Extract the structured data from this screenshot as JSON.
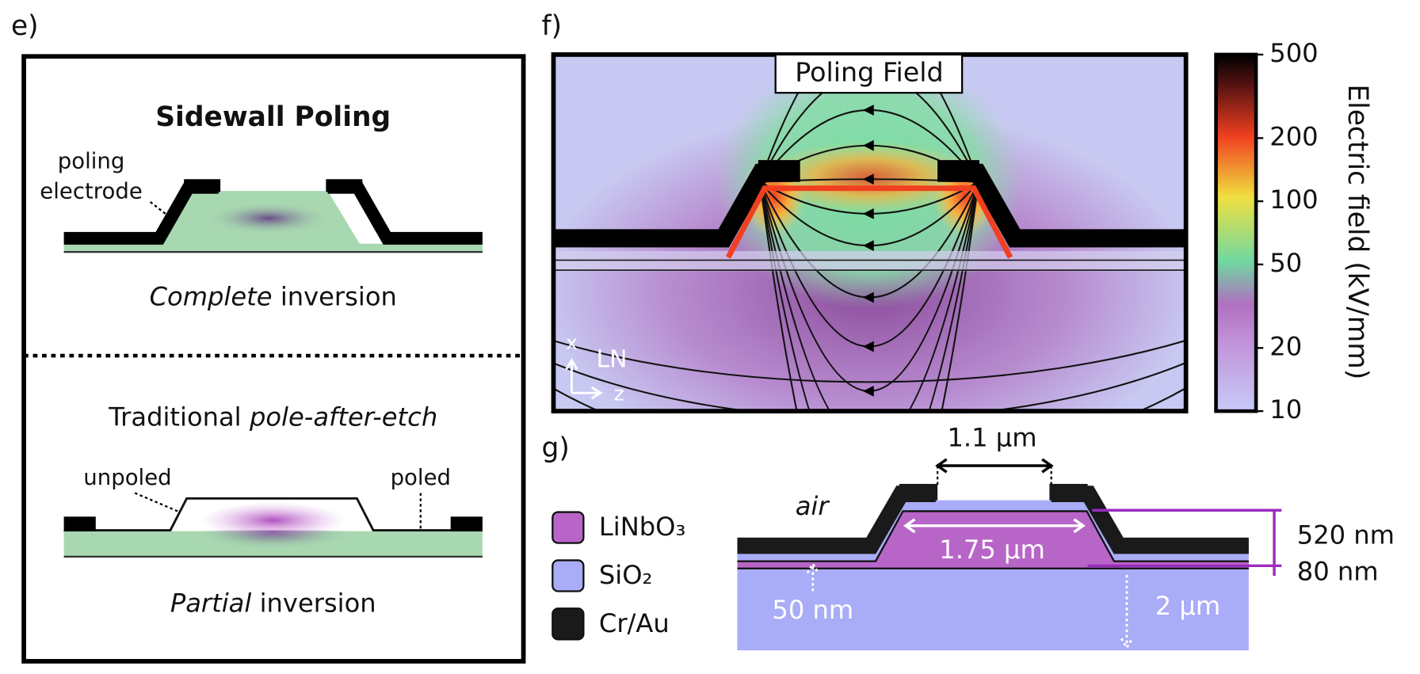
{
  "panel_e": {
    "label": "e)",
    "title": "Sidewall Poling",
    "electrode_label": [
      "poling",
      "electrode"
    ],
    "top_caption": [
      "Complete",
      "inversion"
    ],
    "bottom_title": [
      "Traditional",
      "pole-after-etch"
    ],
    "unpoled": "unpoled",
    "poled": "poled",
    "bottom_caption": [
      "Partial",
      "inversion"
    ]
  },
  "panel_f": {
    "label": "f)",
    "title": "Poling Field",
    "axis_x": "x",
    "axis_z": "z",
    "material": "LN",
    "colorbar": {
      "label": "Electric field (kV/mm)",
      "range": [
        10,
        500
      ],
      "ticks": [
        10,
        20,
        50,
        100,
        200,
        500
      ],
      "log_scale": true
    }
  },
  "panel_g": {
    "label": "g)",
    "legend": [
      {
        "name": "LiNbO₃",
        "color": "#b865c8"
      },
      {
        "name": "SiO₂",
        "color": "#a9acf6"
      },
      {
        "name": "Cr/Au",
        "color": "#1a1a1a"
      }
    ],
    "air": "air",
    "dims": [
      "1.1 μm",
      "1.75 μm",
      "520 nm",
      "80 nm",
      "50 nm",
      "2 μm"
    ]
  }
}
